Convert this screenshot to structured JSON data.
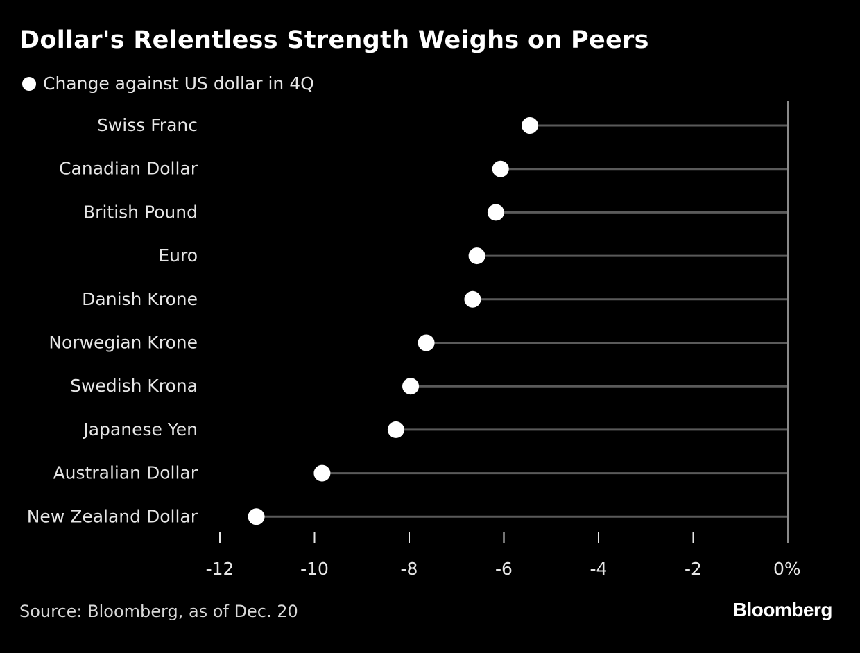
{
  "chart_data": {
    "type": "lollipop",
    "title": "Dollar's Relentless Strength Weighs on Peers",
    "legend": "Change against US dollar in 4Q",
    "categories": [
      "Swiss Franc",
      "Canadian Dollar",
      "British Pound",
      "Euro",
      "Danish Krone",
      "Norwegian Krone",
      "Swedish Krona",
      "Japanese Yen",
      "Australian Dollar",
      "New Zealand Dollar"
    ],
    "values": [
      -5.45,
      -6.07,
      -6.17,
      -6.57,
      -6.66,
      -7.64,
      -7.97,
      -8.28,
      -9.84,
      -11.23
    ],
    "xlim": [
      -12,
      0
    ],
    "xticks": [
      -12,
      -10,
      -8,
      -6,
      -4,
      -2,
      0
    ],
    "xtick_labels": [
      "-12",
      "-10",
      "-8",
      "-6",
      "-4",
      "-2",
      "0%"
    ],
    "xlabel": "",
    "ylabel": "",
    "source": "Source: Bloomberg, as of Dec. 20",
    "brand": "Bloomberg",
    "colors": {
      "background": "#000000",
      "marker": "#ffffff",
      "stem": "#5a5a5a",
      "axis": "#8a8a8a",
      "text": "#e6e6e6"
    }
  }
}
